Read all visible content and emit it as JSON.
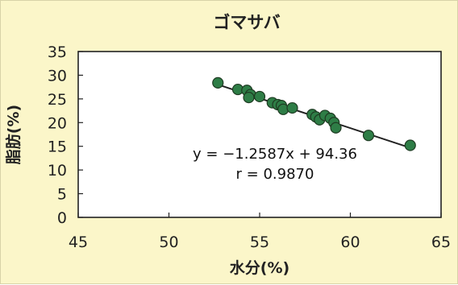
{
  "chart_data": {
    "type": "scatter",
    "title": "ゴマサバ",
    "xlabel": "水分(%)",
    "ylabel": "脂肪(%)",
    "xlim": [
      45,
      65
    ],
    "ylim": [
      0,
      35
    ],
    "x_ticks": [
      45,
      50,
      55,
      60,
      65
    ],
    "y_ticks": [
      0,
      5,
      10,
      15,
      20,
      25,
      30,
      35
    ],
    "grid": false,
    "legend": "none",
    "colors": {
      "background": "#fbf6c9",
      "plot_area": "#ffffff",
      "marker_fill": "#2e7d46",
      "marker_edge": "#1e3b22",
      "trendline": "#222222"
    },
    "points": [
      {
        "x": 52.7,
        "y": 28.4
      },
      {
        "x": 53.8,
        "y": 27.0
      },
      {
        "x": 54.3,
        "y": 26.8
      },
      {
        "x": 54.5,
        "y": 25.9
      },
      {
        "x": 54.4,
        "y": 25.3
      },
      {
        "x": 55.0,
        "y": 25.5
      },
      {
        "x": 55.7,
        "y": 24.2
      },
      {
        "x": 56.0,
        "y": 23.8
      },
      {
        "x": 56.2,
        "y": 23.6
      },
      {
        "x": 56.3,
        "y": 22.8
      },
      {
        "x": 56.8,
        "y": 23.1
      },
      {
        "x": 57.9,
        "y": 21.7
      },
      {
        "x": 58.1,
        "y": 21.2
      },
      {
        "x": 58.3,
        "y": 20.6
      },
      {
        "x": 58.6,
        "y": 21.5
      },
      {
        "x": 58.9,
        "y": 20.9
      },
      {
        "x": 59.1,
        "y": 20.0
      },
      {
        "x": 59.2,
        "y": 18.9
      },
      {
        "x": 61.0,
        "y": 17.3
      },
      {
        "x": 63.3,
        "y": 15.2
      }
    ],
    "trendline": {
      "slope": -1.2587,
      "intercept": 94.36,
      "x_range": [
        52.7,
        63.3
      ]
    },
    "annotations": {
      "equation": "y = −1.2587x + 94.36",
      "r": "r = 0.9870"
    }
  }
}
